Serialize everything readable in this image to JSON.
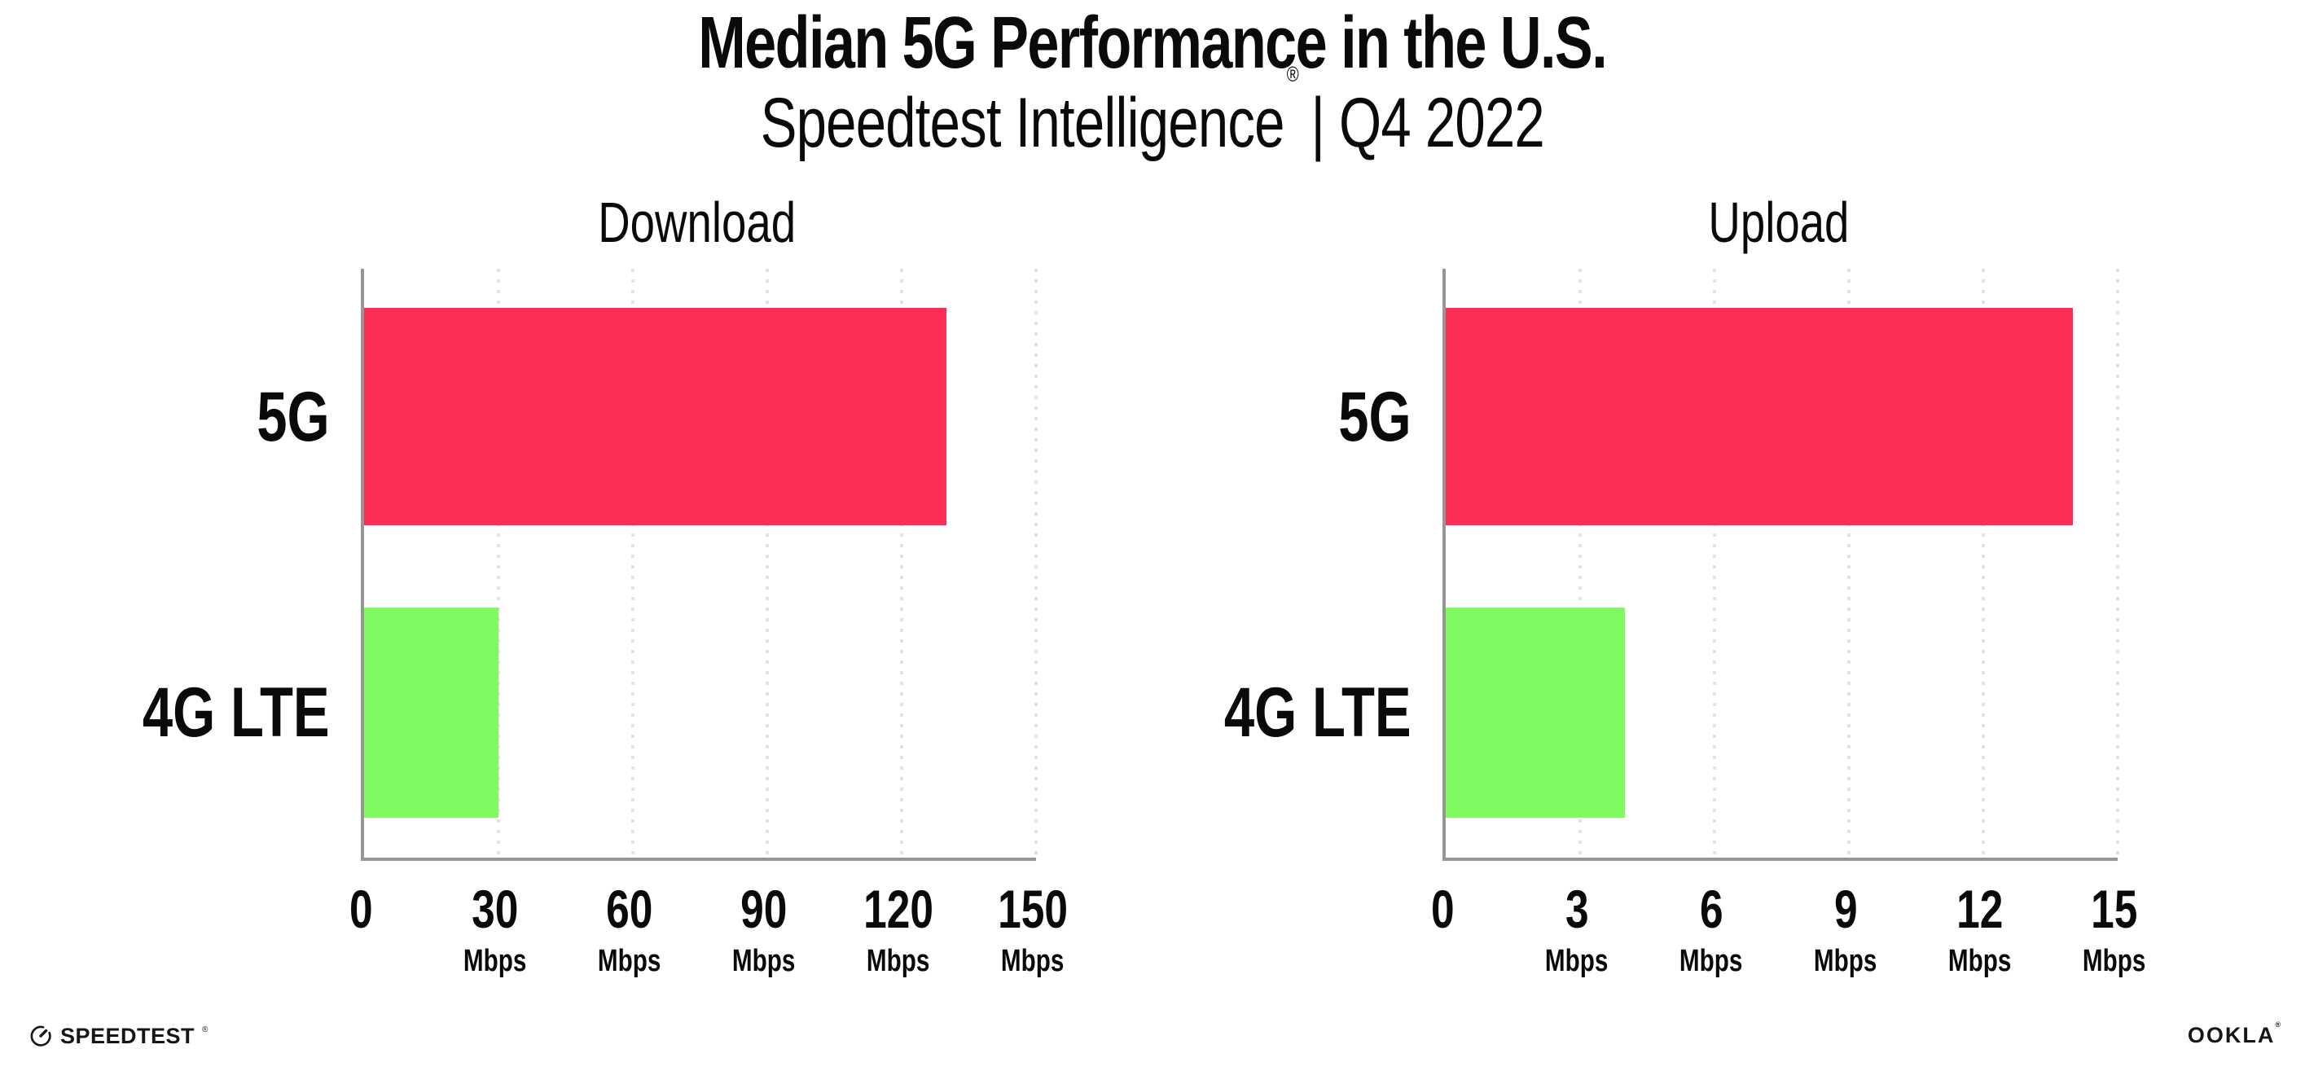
{
  "header": {
    "title": "Median 5G Performance in the U.S.",
    "subtitle_brand": "Speedtest Intelligence",
    "subtitle_reg": "®",
    "subtitle_rest": "| Q4 2022"
  },
  "chart_data": [
    {
      "type": "bar",
      "orientation": "horizontal",
      "title": "Download",
      "categories": [
        "5G",
        "4G LTE"
      ],
      "values": [
        130,
        30
      ],
      "unit": "Mbps",
      "xlabel": "",
      "ylabel": "",
      "xlim": [
        0,
        150
      ],
      "xticks": [
        0,
        30,
        60,
        90,
        120,
        150
      ],
      "bar_colors": [
        "#FC2E58",
        "#7FFA61"
      ],
      "grid": "dotted-vertical-gridlines",
      "legend": "none"
    },
    {
      "type": "bar",
      "orientation": "horizontal",
      "title": "Upload",
      "categories": [
        "5G",
        "4G LTE"
      ],
      "values": [
        14,
        4
      ],
      "unit": "Mbps",
      "xlabel": "",
      "ylabel": "",
      "xlim": [
        0,
        15
      ],
      "xticks": [
        0,
        3,
        6,
        9,
        12,
        15
      ],
      "bar_colors": [
        "#FC2E58",
        "#7FFA61"
      ],
      "grid": "dotted-vertical-gridlines",
      "legend": "none"
    }
  ],
  "footer": {
    "speedtest_label": "SPEEDTEST",
    "speedtest_reg": "®",
    "ookla_label": "OOKLA",
    "ookla_reg": "®"
  },
  "colors": {
    "bar_pink": "#FC2E58",
    "bar_green": "#7FFA61",
    "axis_line": "#969696",
    "gridline": "#E2E1EB",
    "text": "#0A0A0A"
  }
}
